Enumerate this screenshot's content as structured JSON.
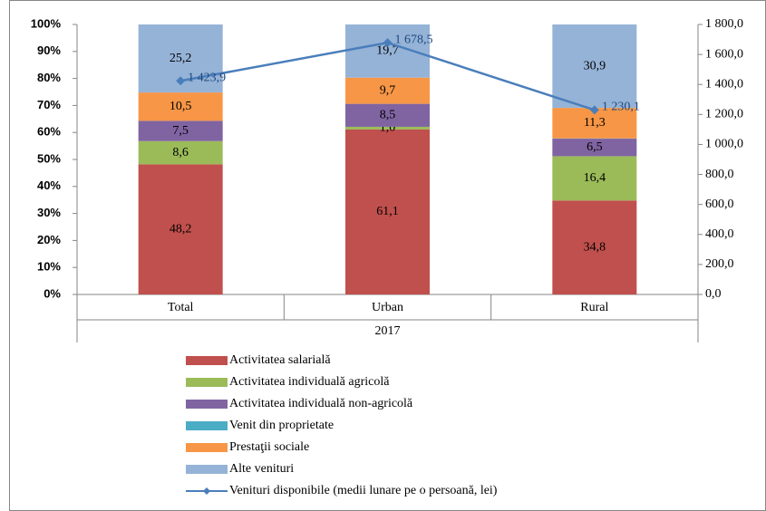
{
  "chart_data": {
    "type": "stacked_bar_line",
    "categories": [
      "Total",
      "Urban",
      "Rural"
    ],
    "group_label": "2017",
    "ylim": [
      0,
      100
    ],
    "yticks": [
      {
        "value": 0,
        "label": "0%"
      },
      {
        "value": 10,
        "label": "10%"
      },
      {
        "value": 20,
        "label": "20%"
      },
      {
        "value": 30,
        "label": "30%"
      },
      {
        "value": 40,
        "label": "40%"
      },
      {
        "value": 50,
        "label": "50%"
      },
      {
        "value": 60,
        "label": "60%"
      },
      {
        "value": 70,
        "label": "70%"
      },
      {
        "value": 80,
        "label": "80%"
      },
      {
        "value": 90,
        "label": "90%"
      },
      {
        "value": 100,
        "label": "100%"
      }
    ],
    "y2lim": [
      0,
      1800
    ],
    "y2ticks": [
      {
        "value": 0,
        "label": "0,0"
      },
      {
        "value": 200,
        "label": "200,0"
      },
      {
        "value": 400,
        "label": "400,0"
      },
      {
        "value": 600,
        "label": "600,0"
      },
      {
        "value": 800,
        "label": "800,0"
      },
      {
        "value": 1000,
        "label": "1 000,0"
      },
      {
        "value": 1200,
        "label": "1 200,0"
      },
      {
        "value": 1400,
        "label": "1 400,0"
      },
      {
        "value": 1600,
        "label": "1 600,0"
      },
      {
        "value": 1800,
        "label": "1 800,0"
      }
    ],
    "series": [
      {
        "name": "Activitatea salarială",
        "color": "#c0504d",
        "values": [
          48.2,
          61.1,
          34.8
        ],
        "value_labels": [
          "48,2",
          "61,1",
          "34,8"
        ]
      },
      {
        "name": "Activitatea individuală agricolă",
        "color": "#9bbb59",
        "values": [
          8.6,
          1.0,
          16.4
        ],
        "value_labels": [
          "8,6",
          "1,0",
          "16,4"
        ]
      },
      {
        "name": "Activitatea individuală non-agricolă",
        "color": "#8064a2",
        "values": [
          7.5,
          8.5,
          6.5
        ],
        "value_labels": [
          "7,5",
          "8,5",
          "6,5"
        ]
      },
      {
        "name": "Venit din proprietate",
        "color": "#4bacc6",
        "values": [
          0,
          0,
          0.1
        ]
      },
      {
        "name": "Prestaţii sociale",
        "color": "#f79646",
        "values": [
          10.5,
          9.7,
          11.3
        ],
        "value_labels": [
          "10,5",
          "9,7",
          "11,3"
        ]
      },
      {
        "name": "Alte venituri",
        "color": "#95b3d7",
        "values": [
          25.2,
          19.7,
          30.9
        ],
        "value_labels": [
          "25,2",
          "19,7",
          "30,9"
        ]
      },
      {
        "name": "Venituri disponibile (medii lunare pe o persoană, lei)",
        "color": "#4a7ebb",
        "axis": "y2",
        "values": [
          1423.9,
          1678.5,
          1230.1
        ],
        "value_labels": [
          "1 423,9",
          "1 678,5",
          "1 230,1"
        ]
      }
    ]
  }
}
